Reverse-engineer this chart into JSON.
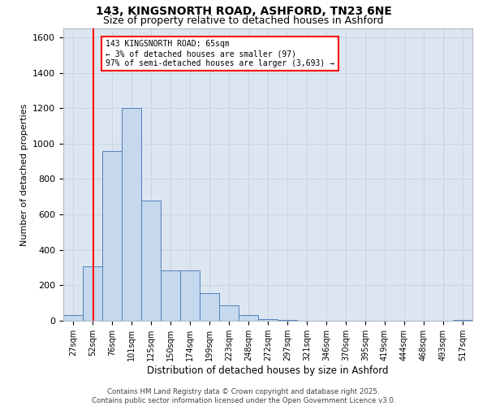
{
  "title_line1": "143, KINGSNORTH ROAD, ASHFORD, TN23 6NE",
  "title_line2": "Size of property relative to detached houses in Ashford",
  "xlabel": "Distribution of detached houses by size in Ashford",
  "ylabel": "Number of detached properties",
  "categories": [
    "27sqm",
    "52sqm",
    "76sqm",
    "101sqm",
    "125sqm",
    "150sqm",
    "174sqm",
    "199sqm",
    "223sqm",
    "248sqm",
    "272sqm",
    "297sqm",
    "321sqm",
    "346sqm",
    "370sqm",
    "395sqm",
    "419sqm",
    "444sqm",
    "468sqm",
    "493sqm",
    "517sqm"
  ],
  "values": [
    30,
    305,
    960,
    1200,
    680,
    285,
    285,
    155,
    85,
    30,
    10,
    3,
    2,
    1,
    1,
    1,
    1,
    1,
    1,
    1,
    3
  ],
  "bar_color": "#c5d8ed",
  "bar_edge_color": "#4f81bd",
  "grid_color": "#c8d4e3",
  "background_color": "#dce6f1",
  "annotation_label": "143 KINGSNORTH ROAD: 65sqm",
  "annotation_line2": "← 3% of detached houses are smaller (97)",
  "annotation_line3": "97% of semi-detached houses are larger (3,693) →",
  "ylim": [
    0,
    1650
  ],
  "yticks": [
    0,
    200,
    400,
    600,
    800,
    1000,
    1200,
    1400,
    1600
  ],
  "footer_line1": "Contains HM Land Registry data © Crown copyright and database right 2025.",
  "footer_line2": "Contains public sector information licensed under the Open Government Licence v3.0."
}
